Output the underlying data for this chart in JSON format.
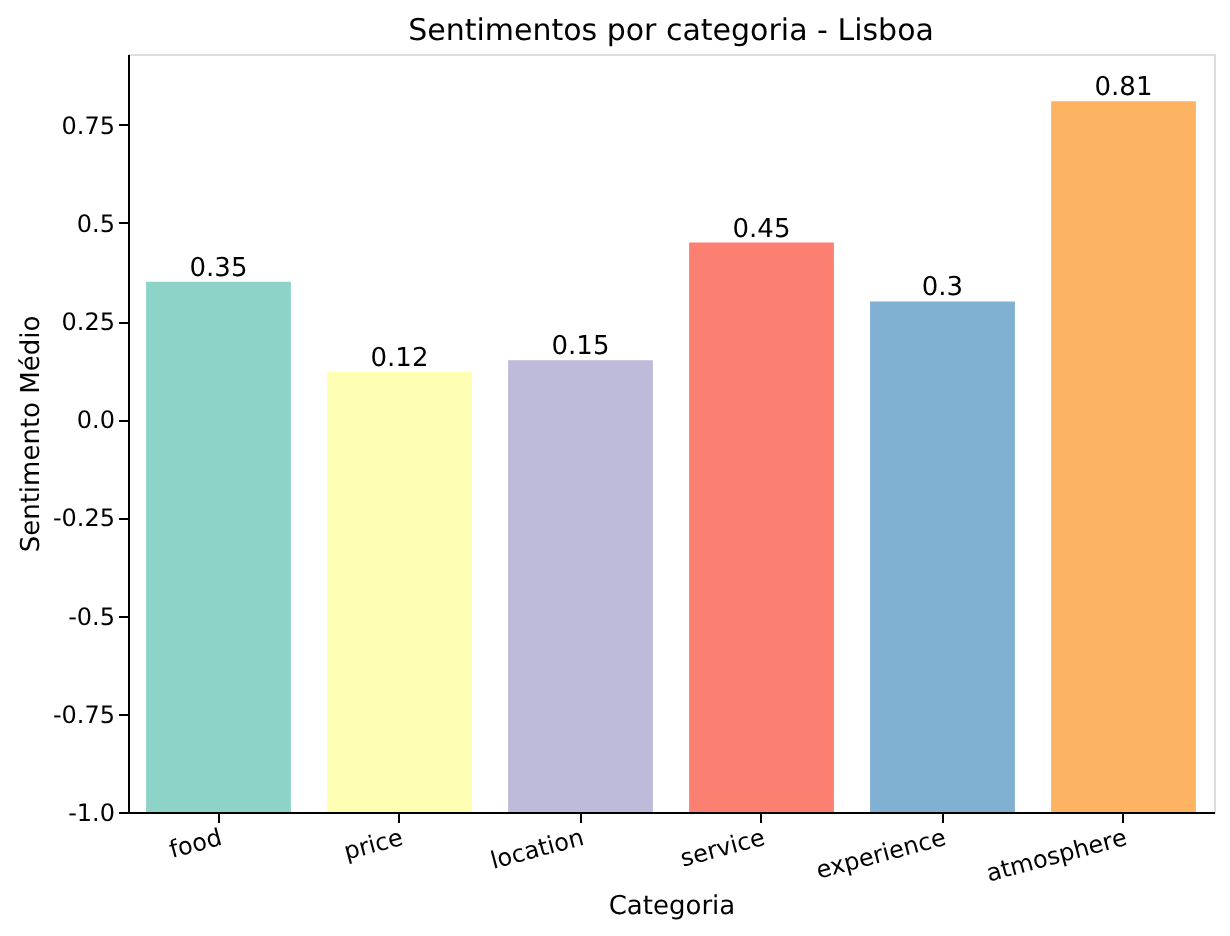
{
  "chart_data": {
    "type": "bar",
    "title": "Sentimentos por categoria - Lisboa",
    "xlabel": "Categoria",
    "ylabel": "Sentimento Médio",
    "categories": [
      "food",
      "price",
      "location",
      "service",
      "experience",
      "atmosphere"
    ],
    "base": [
      -1,
      -1,
      -1,
      -1,
      -1,
      -1
    ],
    "values": [
      1.35,
      1.12,
      1.15,
      1.45,
      1.3,
      1.81
    ],
    "value_labels": [
      "0.35",
      "0.12",
      "0.15",
      "0.45",
      "0.3",
      "0.81"
    ],
    "colors": [
      "#8dd3c7",
      "#ffffb3",
      "#bebada",
      "#fb8072",
      "#80b1d3",
      "#fdb462"
    ],
    "ylim": [
      -1.0,
      0.93
    ],
    "yticks": [
      {
        "value": -1.0,
        "label": "-1.0"
      },
      -0.75,
      -0.5,
      -0.25,
      {
        "value": 0.0,
        "label": "0.0"
      },
      0.25,
      0.5,
      0.75
    ],
    "grid": false
  }
}
